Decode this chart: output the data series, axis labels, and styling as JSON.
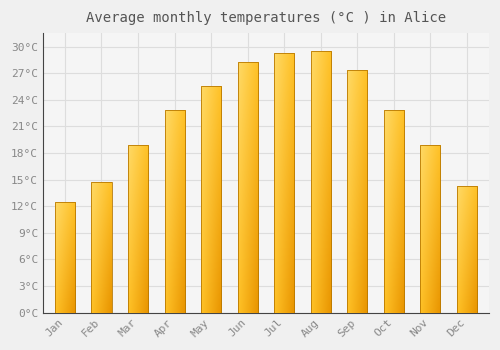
{
  "title": "Average monthly temperatures (°C ) in Alice",
  "months": [
    "Jan",
    "Feb",
    "Mar",
    "Apr",
    "May",
    "Jun",
    "Jul",
    "Aug",
    "Sep",
    "Oct",
    "Nov",
    "Dec"
  ],
  "temperatures": [
    12.5,
    14.7,
    18.9,
    22.8,
    25.5,
    28.2,
    29.3,
    29.5,
    27.3,
    22.8,
    18.9,
    14.3
  ],
  "bar_color_bottom": "#F5A800",
  "bar_color_top": "#FFD04A",
  "bar_color_left": "#FFD04A",
  "bar_color_right": "#E89000",
  "bar_edge_color": "#B87800",
  "background_color": "#F0F0F0",
  "plot_bg_color": "#F5F5F5",
  "grid_color": "#DDDDDD",
  "title_color": "#555555",
  "tick_color": "#888888",
  "spine_color": "#444444",
  "ylim": [
    0,
    31.5
  ],
  "yticks": [
    0,
    3,
    6,
    9,
    12,
    15,
    18,
    21,
    24,
    27,
    30
  ],
  "ytick_labels": [
    "0°C",
    "3°C",
    "6°C",
    "9°C",
    "12°C",
    "15°C",
    "18°C",
    "21°C",
    "24°C",
    "27°C",
    "30°C"
  ],
  "title_fontsize": 10,
  "tick_fontsize": 8,
  "bar_width": 0.55
}
